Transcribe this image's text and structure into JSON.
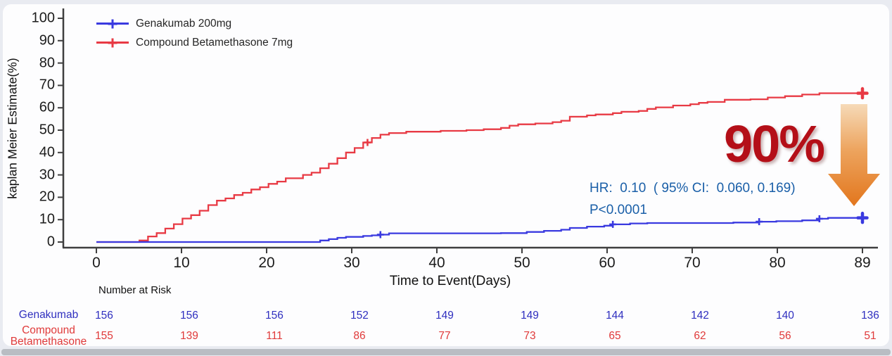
{
  "legend": {
    "items": [
      {
        "label": "Genakumab 200mg",
        "color": "#3a3ae0"
      },
      {
        "label": "Compound Betamethasone 7mg",
        "color": "#e83a44"
      }
    ]
  },
  "annotations": {
    "hr_text": "HR:  0.10  ( 95% CI:  0.060, 0.169)",
    "p_text": "P<0.0001",
    "text_color": "#1a5fa8",
    "highlight_value": "90%",
    "highlight_color": "#b40f18",
    "arrow_colors": {
      "top": "#f6dab8",
      "bottom": "#e2761d"
    }
  },
  "chart_data": {
    "type": "line",
    "subtype": "kaplan-meier step curves",
    "title": "",
    "xlabel": "Time to Event(Days)",
    "ylabel": "kaplan Meier Estimate(%)",
    "xlim": [
      0,
      89
    ],
    "ylim": [
      0,
      100
    ],
    "grid": "off",
    "legend_position": "top-left inside",
    "xtick_labels": [
      "0",
      "10",
      "20",
      "30",
      "40",
      "50",
      "60",
      "70",
      "80",
      "89"
    ],
    "yticks": [
      0,
      10,
      20,
      30,
      40,
      50,
      60,
      70,
      80,
      90,
      100
    ],
    "series": [
      {
        "name": "Compound Betamethasone 7mg",
        "color": "#e83a44",
        "step_points": [
          [
            0,
            0
          ],
          [
            4,
            0
          ],
          [
            5,
            0.7
          ],
          [
            6,
            2.5
          ],
          [
            7,
            4
          ],
          [
            8,
            6
          ],
          [
            9,
            8
          ],
          [
            10,
            10.5
          ],
          [
            11,
            12
          ],
          [
            12,
            14
          ],
          [
            13,
            16.5
          ],
          [
            14,
            18.5
          ],
          [
            15,
            19.5
          ],
          [
            16,
            21
          ],
          [
            17,
            22
          ],
          [
            18,
            23.5
          ],
          [
            19,
            24.5
          ],
          [
            20,
            26
          ],
          [
            21,
            27
          ],
          [
            22,
            28.5
          ],
          [
            24,
            30
          ],
          [
            25,
            31
          ],
          [
            26,
            33
          ],
          [
            27,
            35
          ],
          [
            28,
            37.5
          ],
          [
            29,
            40
          ],
          [
            30,
            42
          ],
          [
            31,
            44.5
          ],
          [
            32,
            46.5
          ],
          [
            33,
            48
          ],
          [
            34,
            48.7
          ],
          [
            36,
            49.3
          ],
          [
            40,
            49.7
          ],
          [
            43,
            50
          ],
          [
            45,
            50.4
          ],
          [
            47,
            51
          ],
          [
            48,
            52
          ],
          [
            49,
            52.6
          ],
          [
            51,
            53
          ],
          [
            53,
            53.6
          ],
          [
            54,
            54.2
          ],
          [
            55,
            56
          ],
          [
            57,
            56.6
          ],
          [
            58,
            57
          ],
          [
            60,
            57.6
          ],
          [
            61,
            58.2
          ],
          [
            63,
            58.6
          ],
          [
            64,
            59.5
          ],
          [
            65,
            60.2
          ],
          [
            67,
            61
          ],
          [
            69,
            61.6
          ],
          [
            70,
            62.2
          ],
          [
            71,
            62.6
          ],
          [
            73,
            63.6
          ],
          [
            76,
            63.8
          ],
          [
            78,
            64.6
          ],
          [
            80,
            65.2
          ],
          [
            82,
            65.9
          ],
          [
            84,
            66.5
          ],
          [
            89,
            66.5
          ]
        ],
        "censor_marks": [
          [
            31.5,
            44.5
          ]
        ],
        "end_value": 66.5
      },
      {
        "name": "Genakumab 200mg",
        "color": "#3a3ae0",
        "step_points": [
          [
            0,
            0
          ],
          [
            25,
            0
          ],
          [
            26,
            0.7
          ],
          [
            27,
            1.3
          ],
          [
            28,
            1.9
          ],
          [
            29,
            2.3
          ],
          [
            31,
            2.7
          ],
          [
            32,
            3
          ],
          [
            33,
            3.3
          ],
          [
            34,
            3.9
          ],
          [
            47,
            4
          ],
          [
            50,
            4.5
          ],
          [
            52,
            5
          ],
          [
            54,
            5.5
          ],
          [
            55,
            6.3
          ],
          [
            57,
            6.9
          ],
          [
            59,
            7.3
          ],
          [
            60,
            7.9
          ],
          [
            62,
            8.3
          ],
          [
            64,
            8.5
          ],
          [
            74,
            8.7
          ],
          [
            77,
            9.1
          ],
          [
            79,
            9.3
          ],
          [
            82,
            9.7
          ],
          [
            84,
            10.4
          ],
          [
            85,
            10.8
          ],
          [
            89,
            10.8
          ]
        ],
        "censor_marks": [
          [
            33,
            3.3
          ],
          [
            60,
            7.9
          ],
          [
            77,
            9.1
          ],
          [
            84,
            10.4
          ]
        ],
        "end_value": 10.8
      }
    ]
  },
  "risk_table": {
    "header": "Number at Risk",
    "rows": [
      {
        "label": "Genakumab",
        "color": "#2f2fbf",
        "values": [
          "156",
          "156",
          "156",
          "152",
          "149",
          "149",
          "144",
          "142",
          "140",
          "136"
        ]
      },
      {
        "label": "Compound Betamethasone",
        "color": "#e03a3a",
        "values": [
          "155",
          "139",
          "111",
          "86",
          "77",
          "73",
          "65",
          "62",
          "56",
          "51"
        ]
      }
    ]
  }
}
